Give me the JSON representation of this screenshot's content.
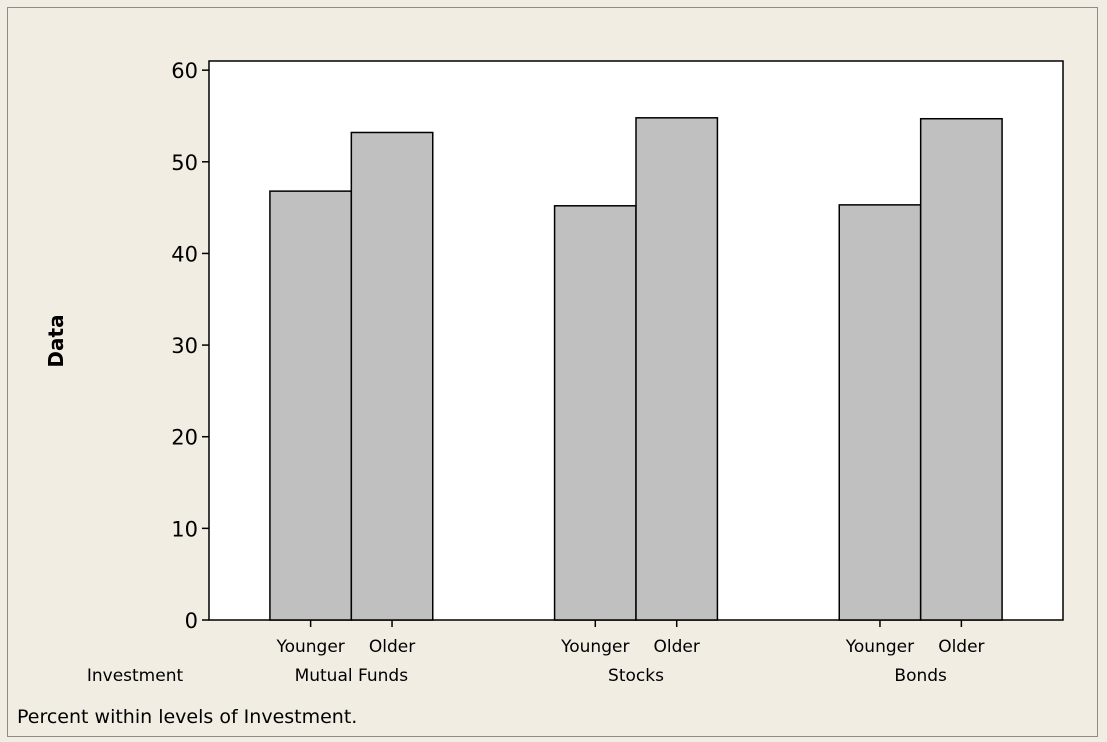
{
  "chart_data": {
    "type": "bar",
    "ylabel": "Data",
    "ylim": [
      0,
      61
    ],
    "yticks": [
      0,
      10,
      20,
      30,
      40,
      50,
      60
    ],
    "grid": false,
    "group_axis_label": "Investment",
    "groups": [
      {
        "name": "Mutual Funds",
        "categories": [
          "Younger",
          "Older"
        ],
        "values": [
          46.8,
          53.2
        ]
      },
      {
        "name": "Stocks",
        "categories": [
          "Younger",
          "Older"
        ],
        "values": [
          45.2,
          54.8
        ]
      },
      {
        "name": "Bonds",
        "categories": [
          "Younger",
          "Older"
        ],
        "values": [
          45.3,
          54.7
        ]
      }
    ],
    "footnote": "Percent within levels of Investment.",
    "colors": {
      "background": "#f1ede3",
      "plot": "#ffffff",
      "bar": "#c0c0c0",
      "outline": "#000000"
    }
  }
}
